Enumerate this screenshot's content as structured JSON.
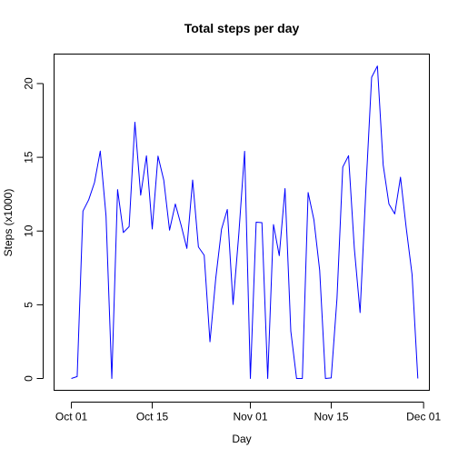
{
  "chart_data": {
    "type": "line",
    "title": "Total steps per day",
    "xlabel": "Day",
    "ylabel": "Steps (x1000)",
    "x_start": "2012-10-01",
    "x_ticks": [
      {
        "date": "2012-10-01",
        "label": "Oct 01"
      },
      {
        "date": "2012-10-15",
        "label": "Oct 15"
      },
      {
        "date": "2012-11-01",
        "label": "Nov 01"
      },
      {
        "date": "2012-11-15",
        "label": "Nov 15"
      },
      {
        "date": "2012-12-01",
        "label": "Dec 01"
      }
    ],
    "y_ticks": [
      0,
      5,
      10,
      15,
      20
    ],
    "xlim": [
      "2012-09-28",
      "2012-12-02"
    ],
    "ylim": [
      -0.8,
      22.0
    ],
    "grid": false,
    "series": [
      {
        "color": "#0000ff",
        "dates": [
          "2012-10-01",
          "2012-10-02",
          "2012-10-03",
          "2012-10-04",
          "2012-10-05",
          "2012-10-06",
          "2012-10-07",
          "2012-10-08",
          "2012-10-09",
          "2012-10-10",
          "2012-10-11",
          "2012-10-12",
          "2012-10-13",
          "2012-10-14",
          "2012-10-15",
          "2012-10-16",
          "2012-10-17",
          "2012-10-18",
          "2012-10-19",
          "2012-10-20",
          "2012-10-21",
          "2012-10-22",
          "2012-10-23",
          "2012-10-24",
          "2012-10-25",
          "2012-10-26",
          "2012-10-27",
          "2012-10-28",
          "2012-10-29",
          "2012-10-30",
          "2012-10-31",
          "2012-11-01",
          "2012-11-02",
          "2012-11-03",
          "2012-11-04",
          "2012-11-05",
          "2012-11-06",
          "2012-11-07",
          "2012-11-08",
          "2012-11-09",
          "2012-11-10",
          "2012-11-11",
          "2012-11-12",
          "2012-11-13",
          "2012-11-14",
          "2012-11-15",
          "2012-11-16",
          "2012-11-17",
          "2012-11-18",
          "2012-11-19",
          "2012-11-20",
          "2012-11-21",
          "2012-11-22",
          "2012-11-23",
          "2012-11-24",
          "2012-11-25",
          "2012-11-26",
          "2012-11-27",
          "2012-11-28",
          "2012-11-29",
          "2012-11-30"
        ],
        "values": [
          0,
          0.13,
          11.35,
          12.12,
          13.29,
          15.42,
          11.02,
          0,
          12.81,
          9.9,
          10.3,
          17.38,
          12.43,
          15.1,
          10.14,
          15.08,
          13.45,
          10.06,
          11.83,
          10.4,
          8.82,
          13.46,
          8.92,
          8.36,
          2.49,
          6.78,
          10.12,
          11.46,
          5.02,
          9.82,
          15.41,
          0,
          10.6,
          10.57,
          0,
          10.44,
          8.33,
          12.88,
          3.22,
          0,
          0,
          12.61,
          10.77,
          7.34,
          0,
          0.04,
          5.44,
          14.34,
          15.11,
          8.84,
          4.47,
          12.79,
          20.43,
          21.19,
          14.48,
          11.83,
          11.16,
          13.65,
          10.18,
          7.05,
          0
        ]
      }
    ]
  }
}
